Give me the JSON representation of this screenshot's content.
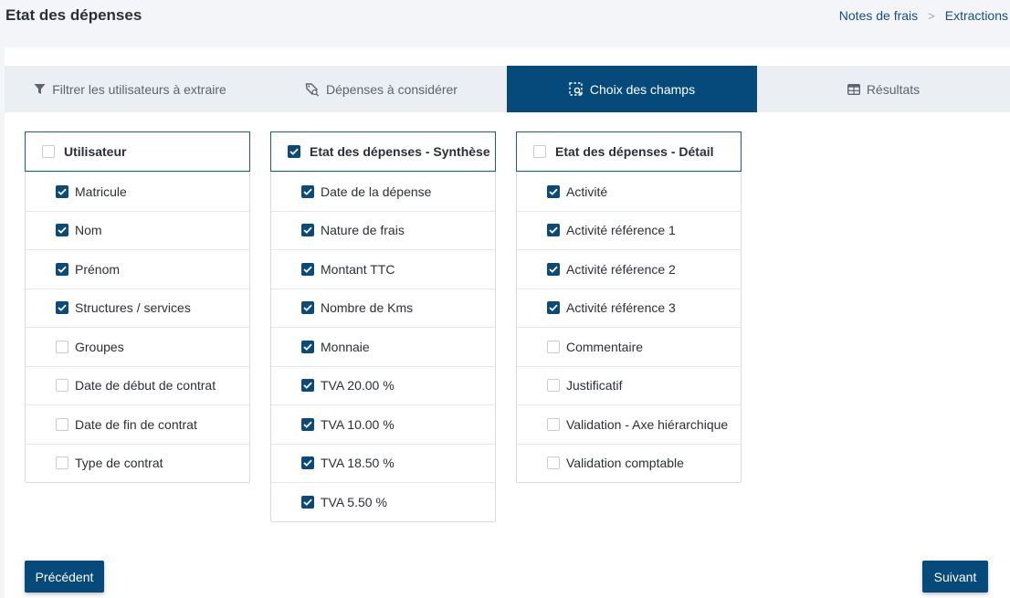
{
  "header": {
    "title": "Etat des dépenses",
    "breadcrumb": [
      "Notes de frais",
      "Extractions"
    ],
    "breadcrumb_separator": ">"
  },
  "tabs": [
    {
      "label": "Filtrer les utilisateurs à extraire",
      "icon": "filter-icon",
      "active": false
    },
    {
      "label": "Dépenses à considérer",
      "icon": "tag-search-icon",
      "active": false
    },
    {
      "label": "Choix des champs",
      "icon": "select-search-icon",
      "active": true
    },
    {
      "label": "Résultats",
      "icon": "table-icon",
      "active": false
    }
  ],
  "panels": [
    {
      "title": "Utilisateur",
      "checked": false,
      "items": [
        {
          "label": "Matricule",
          "checked": true
        },
        {
          "label": "Nom",
          "checked": true
        },
        {
          "label": "Prénom",
          "checked": true
        },
        {
          "label": "Structures / services",
          "checked": true
        },
        {
          "label": "Groupes",
          "checked": false
        },
        {
          "label": "Date de début de contrat",
          "checked": false
        },
        {
          "label": "Date de fin de contrat",
          "checked": false
        },
        {
          "label": "Type de contrat",
          "checked": false
        }
      ]
    },
    {
      "title": "Etat des dépenses - Synthèse",
      "checked": true,
      "items": [
        {
          "label": "Date de la dépense",
          "checked": true
        },
        {
          "label": "Nature de frais",
          "checked": true
        },
        {
          "label": "Montant TTC",
          "checked": true
        },
        {
          "label": "Nombre de Kms",
          "checked": true
        },
        {
          "label": "Monnaie",
          "checked": true
        },
        {
          "label": "TVA 20.00 %",
          "checked": true
        },
        {
          "label": "TVA 10.00 %",
          "checked": true
        },
        {
          "label": "TVA 18.50 %",
          "checked": true
        },
        {
          "label": "TVA 5.50 %",
          "checked": true
        }
      ]
    },
    {
      "title": "Etat des dépenses - Détail",
      "checked": false,
      "items": [
        {
          "label": "Activité",
          "checked": true
        },
        {
          "label": "Activité référence 1",
          "checked": true
        },
        {
          "label": "Activité référence 2",
          "checked": true
        },
        {
          "label": "Activité référence 3",
          "checked": true
        },
        {
          "label": "Commentaire",
          "checked": false
        },
        {
          "label": "Justificatif",
          "checked": false
        },
        {
          "label": "Validation - Axe hiérarchique",
          "checked": false
        },
        {
          "label": "Validation comptable",
          "checked": false
        }
      ]
    }
  ],
  "buttons": {
    "previous": "Précédent",
    "next": "Suivant"
  },
  "colors": {
    "accent": "#054a7a",
    "tab_bar": "#ebeef2",
    "link": "#14507e"
  }
}
